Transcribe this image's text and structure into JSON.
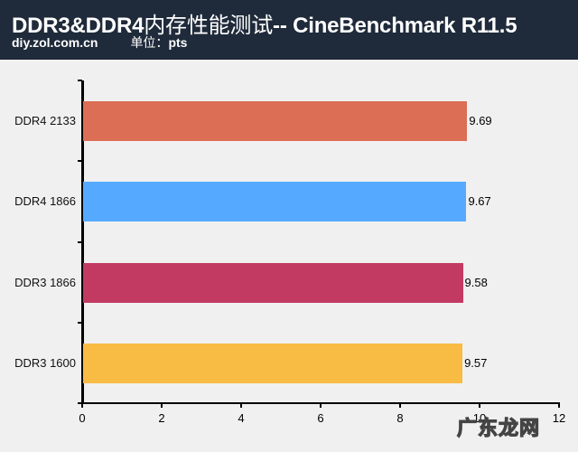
{
  "header": {
    "title_prefix": "DDR3&DDR4",
    "title_cn": "内存性能测试",
    "title_suffix": "-- CineBenchmark R11.5",
    "source": "diy.zol.com.cn",
    "unit_label": "单位：",
    "unit_value": "pts"
  },
  "watermark": "广东龙网",
  "colors": {
    "header_bg": "#1f2a3a",
    "plot_bg": "#f0f0f0",
    "DDR4 2133": "#dc6e55",
    "DDR4 1866": "#55aaff",
    "DDR3 1866": "#c23a62",
    "DDR3 1600": "#f8bb44"
  },
  "chart_data": {
    "type": "bar",
    "orientation": "horizontal",
    "title": "DDR3&DDR4内存性能测试-- CineBenchmark R11.5",
    "subtitle": "diy.zol.com.cn 单位：pts",
    "categories": [
      "DDR4 2133",
      "DDR4 1866",
      "DDR3 1866",
      "DDR3 1600"
    ],
    "values": [
      9.69,
      9.67,
      9.58,
      9.57
    ],
    "value_labels": [
      "9.69",
      "9.67",
      "9.58",
      "9.57"
    ],
    "xlabel": "",
    "ylabel": "",
    "xlim": [
      0,
      12
    ],
    "xticks": [
      "0",
      "2",
      "4",
      "6",
      "8",
      "10",
      "12"
    ],
    "grid": false,
    "legend": "none"
  }
}
